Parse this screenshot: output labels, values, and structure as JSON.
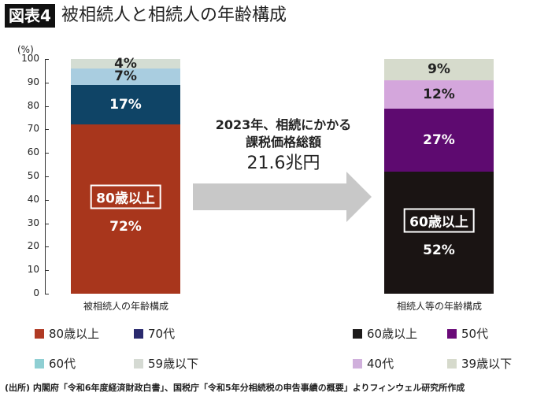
{
  "header": {
    "badge": "図表4",
    "title": "被相続人と相続人の年齢構成"
  },
  "chart_data": {
    "type": "bar",
    "stacked": true,
    "yunit": "(%)",
    "ylim": [
      0,
      100
    ],
    "yticks": [
      "0",
      "10",
      "20",
      "30",
      "40",
      "50",
      "60",
      "70",
      "80",
      "90",
      "100"
    ],
    "categories": [
      "被相続人の年齢構成",
      "相続人等の年齢構成"
    ],
    "bars": [
      {
        "segments": [
          {
            "name": "80歳以上",
            "value": 72,
            "label": "72%",
            "color": "#a8361c"
          },
          {
            "name": "70代",
            "value": 17,
            "label": "17%",
            "color": "#0f4466"
          },
          {
            "name": "60代",
            "value": 7,
            "label": "7%",
            "color": "#a9cde0"
          },
          {
            "name": "59歳以下",
            "value": 4,
            "label": "4%",
            "color": "#d4ddd3"
          }
        ],
        "highlight": "80歳以上"
      },
      {
        "segments": [
          {
            "name": "60歳以上",
            "value": 52,
            "label": "52%",
            "color": "#1a1413"
          },
          {
            "name": "50代",
            "value": 27,
            "label": "27%",
            "color": "#5e0a70"
          },
          {
            "name": "40代",
            "value": 12,
            "label": "12%",
            "color": "#d4a6dc"
          },
          {
            "name": "39歳以下",
            "value": 9,
            "label": "9%",
            "color": "#d6dbcc"
          }
        ],
        "highlight": "60歳以上"
      }
    ],
    "annotation": {
      "line1": "2023年、相続にかかる",
      "line2": "課税価格総額",
      "line3": "21.6兆円"
    },
    "legend": [
      {
        "label": "80歳以上",
        "color": "#b03a24"
      },
      {
        "label": "70代",
        "color": "#2a2a6e"
      },
      {
        "label": "60代",
        "color": "#8fcfd3"
      },
      {
        "label": "59歳以下",
        "color": "#d5dad3"
      },
      {
        "label": "60歳以上",
        "color": "#1c1a1a"
      },
      {
        "label": "50代",
        "color": "#6a0a78"
      },
      {
        "label": "40代",
        "color": "#d0b0dc"
      },
      {
        "label": "39歳以下",
        "color": "#d6dacc"
      }
    ]
  },
  "source": "(出所) 内閣府「令和6年度経済財政白書」、国税庁「令和5年分相続税の申告事績の概要」よりフィンウェル研究所作成"
}
